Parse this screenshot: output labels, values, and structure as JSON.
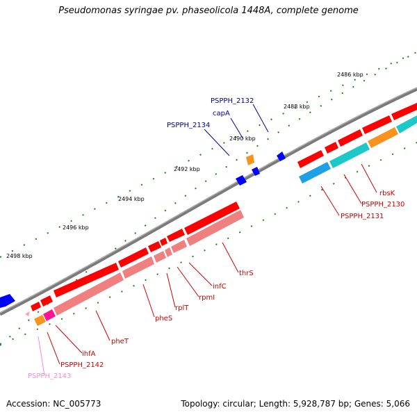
{
  "title": "Pseudomonas syringae pv. phaseolicola 1448A, complete genome",
  "footer": {
    "accession": "Accession: NC_005773",
    "summary": "Topology: circular; Length: 5,928,787 bp; Genes: 5,066"
  },
  "ticks": [
    {
      "label": "2486 kbp"
    },
    {
      "label": "2488 kbp"
    },
    {
      "label": "2490 kbp"
    },
    {
      "label": "2492 kbp"
    },
    {
      "label": "2494 kbp"
    },
    {
      "label": "2496 kbp"
    },
    {
      "label": "2498 kbp"
    }
  ],
  "labels": {
    "PSPPH_2132": "PSPPH_2132",
    "capA": "capA",
    "PSPPH_2134": "PSPPH_2134",
    "rbsK": "rbsK",
    "PSPPH_2130": "PSPPH_2130",
    "PSPPH_2131": "PSPPH_2131",
    "thrS": "thrS",
    "infC": "infC",
    "rpmI": "rpmI",
    "rplT": "rplT",
    "pheS": "pheS",
    "pheT": "pheT",
    "ihfA": "ihfA",
    "PSPPH_2142": "PSPPH_2142",
    "PSPPH_2143": "PSPPH_2143"
  },
  "colors": {
    "backbone": "#7a7a7a",
    "tick": "#1f7a1f",
    "cds": "#ff0000",
    "rrna_pink": "#f08080",
    "hypothetical_blue": "#0000ff",
    "orange": "#f7931e",
    "cyan": "#1ec8c8",
    "sky": "#1ea0e6",
    "magenta": "#ff1493",
    "light_pink": "#ff99cc",
    "label_blue": "#00008b",
    "label_red": "#cc0000",
    "label_pink": "#ff88cc"
  }
}
